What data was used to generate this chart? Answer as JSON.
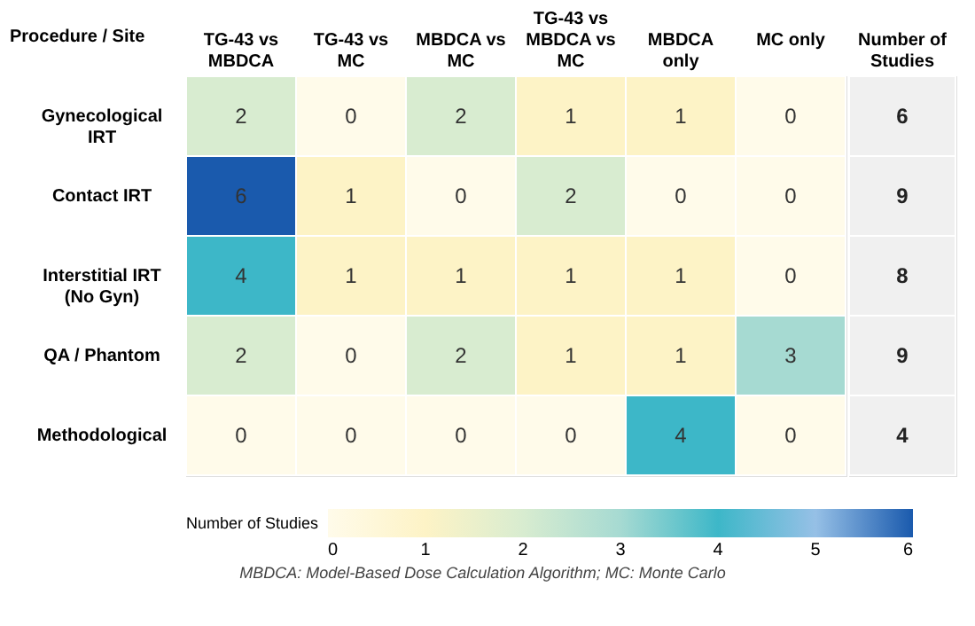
{
  "chart_data": {
    "type": "heatmap",
    "ylabel": "Procedure / Site",
    "categories": [
      "TG-43 vs MBDCA",
      "TG-43 vs MC",
      "MBDCA vs MC",
      "TG-43 vs MBDCA vs MC",
      "MBDCA only",
      "MC only"
    ],
    "y_categories": [
      "Gynecological IRT",
      "Contact IRT",
      "Interstitial IRT (No Gyn)",
      "QA / Phantom",
      "Methodological"
    ],
    "y2label": "Number of Studies",
    "y2_categories": [
      "6",
      "9",
      "8",
      "9",
      "4"
    ],
    "cells": [
      [
        2,
        0,
        2,
        1,
        1,
        0
      ],
      [
        6,
        1,
        0,
        2,
        0,
        0
      ],
      [
        4,
        1,
        1,
        1,
        1,
        0
      ],
      [
        2,
        0,
        2,
        1,
        1,
        3
      ],
      [
        0,
        0,
        0,
        0,
        4,
        0
      ]
    ],
    "data_labels": true,
    "clabel": "Number of Studies",
    "clim": [
      0,
      6
    ],
    "cticks": [
      0,
      1,
      2,
      3,
      4,
      5,
      6
    ],
    "colors": [
      "#fffbea",
      "#fdf3c6",
      "#d8ecd0",
      "#a6dad2",
      "#3db7c8",
      "#96c0e6",
      "#1a5aad"
    ],
    "annotations": [
      "MBDCA: Model-Based Dose Calculation Algorithm; MC: Monte Carlo"
    ]
  }
}
